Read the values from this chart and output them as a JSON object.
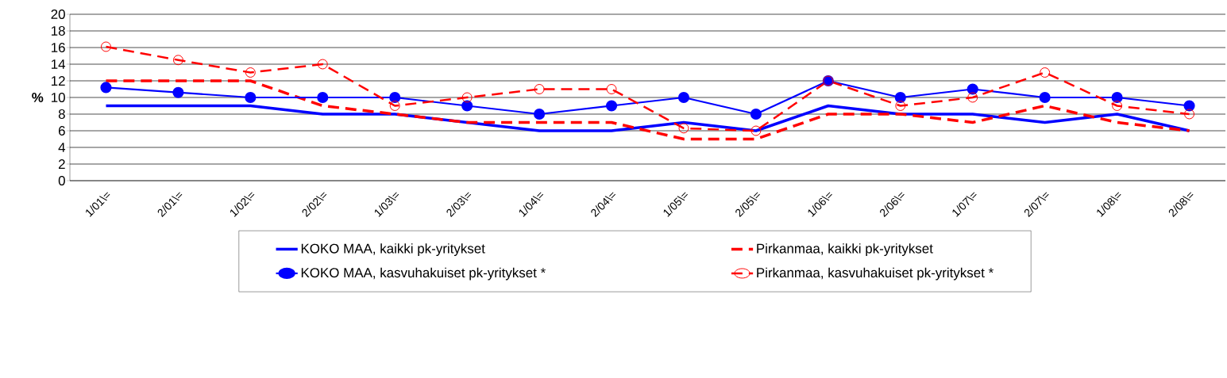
{
  "chart_data": {
    "type": "line",
    "ylabel": "%",
    "categories": [
      "1/01\\=",
      "2/01\\=",
      "1/02\\=",
      "2/02\\=",
      "1/03\\=",
      "2/03\\=",
      "1/04\\=",
      "2/04\\=",
      "1/05\\=",
      "2/05\\=",
      "1/06\\=",
      "2/06\\=",
      "1/07\\=",
      "2/07\\=",
      "1/08\\=",
      "2/08\\="
    ],
    "ylim": [
      0,
      20
    ],
    "yticks": [
      0,
      2,
      4,
      6,
      8,
      10,
      12,
      14,
      16,
      18,
      20
    ],
    "grid": "y",
    "legend": "bottom",
    "series": [
      {
        "name": "KOKO MAA, kaikki pk-yritykset",
        "color": "#0000ff",
        "marker": "none",
        "line_style": "solid",
        "values": [
          9,
          9,
          9,
          8,
          8,
          7,
          6,
          6,
          7,
          6,
          9,
          8,
          8,
          7,
          8,
          6
        ]
      },
      {
        "name": "Pirkanmaa, kaikki pk-yritykset",
        "color": "#ff0000",
        "marker": "none",
        "line_style": "dashed",
        "values": [
          12,
          12,
          12,
          9,
          8,
          7,
          7,
          7,
          5,
          5,
          8,
          8,
          7,
          9,
          7,
          6
        ]
      },
      {
        "name": "KOKO MAA, kasvuhakuiset pk-yritykset *",
        "color": "#0000ff",
        "marker": "circle",
        "line_style": "solid",
        "values": [
          11.2,
          10.6,
          10,
          10,
          10,
          9,
          8,
          9,
          10,
          8,
          12,
          10,
          11,
          10,
          10,
          9
        ]
      },
      {
        "name": "Pirkanmaa, kasvuhakuiset pk-yritykset *",
        "color": "#ff0000",
        "marker": "open circle",
        "line_style": "dashed",
        "values": [
          16.1,
          14.5,
          13,
          14,
          9,
          10,
          11,
          11,
          6.3,
          6,
          12,
          9,
          10,
          13,
          9,
          8
        ]
      }
    ]
  }
}
